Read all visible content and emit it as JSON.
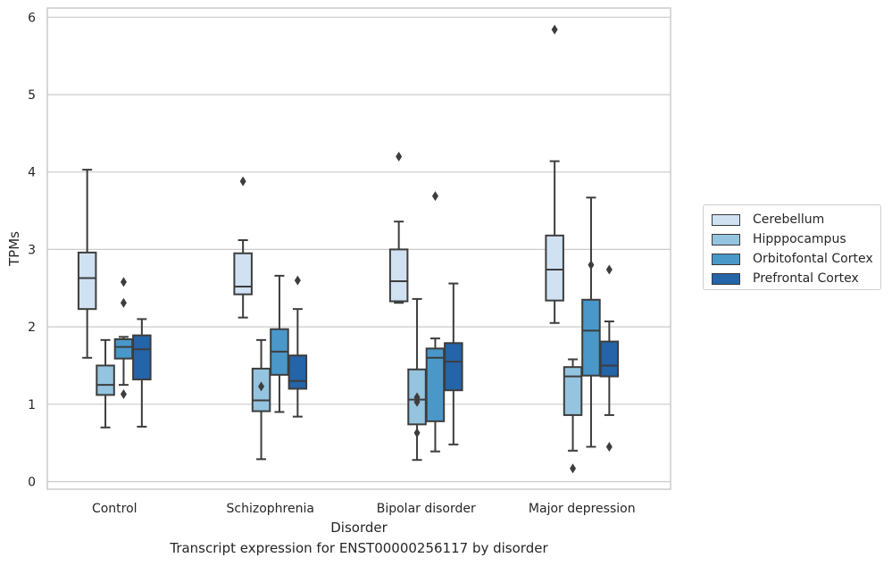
{
  "caption": "Transcript expression for ENST00000256117 by disorder",
  "chart_data": {
    "type": "box",
    "xlabel": "Disorder",
    "ylabel": "TPMs",
    "ylim": [
      -0.1,
      6.1
    ],
    "yticks": [
      0,
      1,
      2,
      3,
      4,
      5,
      6
    ],
    "grid": true,
    "legend_position": "right",
    "categories": [
      "Control",
      "Schizophrenia",
      "Bipolar disorder",
      "Major depression"
    ],
    "series": [
      {
        "name": "Cerebellum",
        "color": "#d0e1f2",
        "boxes": [
          {
            "whislo": 1.6,
            "q1": 2.23,
            "med": 2.63,
            "q3": 2.96,
            "whishi": 4.03,
            "fliers": []
          },
          {
            "whislo": 2.12,
            "q1": 2.42,
            "med": 2.52,
            "q3": 2.95,
            "whishi": 3.12,
            "fliers": [
              3.88
            ]
          },
          {
            "whislo": 2.31,
            "q1": 2.33,
            "med": 2.59,
            "q3": 3.0,
            "whishi": 3.36,
            "fliers": [
              4.2
            ]
          },
          {
            "whislo": 2.05,
            "q1": 2.34,
            "med": 2.74,
            "q3": 3.18,
            "whishi": 4.14,
            "fliers": [
              5.84
            ]
          }
        ]
      },
      {
        "name": "Hipppocampus",
        "color": "#94c4df",
        "boxes": [
          {
            "whislo": 0.7,
            "q1": 1.12,
            "med": 1.25,
            "q3": 1.5,
            "whishi": 1.83,
            "fliers": []
          },
          {
            "whislo": 0.29,
            "q1": 0.91,
            "med": 1.05,
            "q3": 1.46,
            "whishi": 1.83,
            "fliers": [
              1.23
            ]
          },
          {
            "whislo": 0.28,
            "q1": 0.74,
            "med": 1.06,
            "q3": 1.45,
            "whishi": 2.36,
            "fliers": [
              0.63,
              1.03,
              1.09
            ]
          },
          {
            "whislo": 0.4,
            "q1": 0.86,
            "med": 1.36,
            "q3": 1.48,
            "whishi": 1.58,
            "fliers": [
              0.17
            ]
          }
        ]
      },
      {
        "name": "Orbitofontal Cortex",
        "color": "#4a98c9",
        "boxes": [
          {
            "whislo": 1.25,
            "q1": 1.59,
            "med": 1.74,
            "q3": 1.84,
            "whishi": 1.87,
            "fliers": [
              1.13,
              2.31,
              2.58
            ]
          },
          {
            "whislo": 0.9,
            "q1": 1.38,
            "med": 1.68,
            "q3": 1.97,
            "whishi": 2.66,
            "fliers": []
          },
          {
            "whislo": 0.39,
            "q1": 0.78,
            "med": 1.6,
            "q3": 1.72,
            "whishi": 1.85,
            "fliers": [
              3.69
            ]
          },
          {
            "whislo": 0.45,
            "q1": 1.37,
            "med": 1.95,
            "q3": 2.35,
            "whishi": 3.67,
            "fliers": [
              2.8
            ]
          }
        ]
      },
      {
        "name": "Prefrontal Cortex",
        "color": "#2464a8",
        "boxes": [
          {
            "whislo": 0.71,
            "q1": 1.32,
            "med": 1.71,
            "q3": 1.89,
            "whishi": 2.1,
            "fliers": []
          },
          {
            "whislo": 0.84,
            "q1": 1.2,
            "med": 1.3,
            "q3": 1.63,
            "whishi": 2.23,
            "fliers": [
              2.6
            ]
          },
          {
            "whislo": 0.48,
            "q1": 1.18,
            "med": 1.55,
            "q3": 1.79,
            "whishi": 2.56,
            "fliers": []
          },
          {
            "whislo": 0.86,
            "q1": 1.36,
            "med": 1.5,
            "q3": 1.81,
            "whishi": 2.07,
            "fliers": [
              0.45,
              2.74
            ]
          }
        ]
      }
    ]
  }
}
